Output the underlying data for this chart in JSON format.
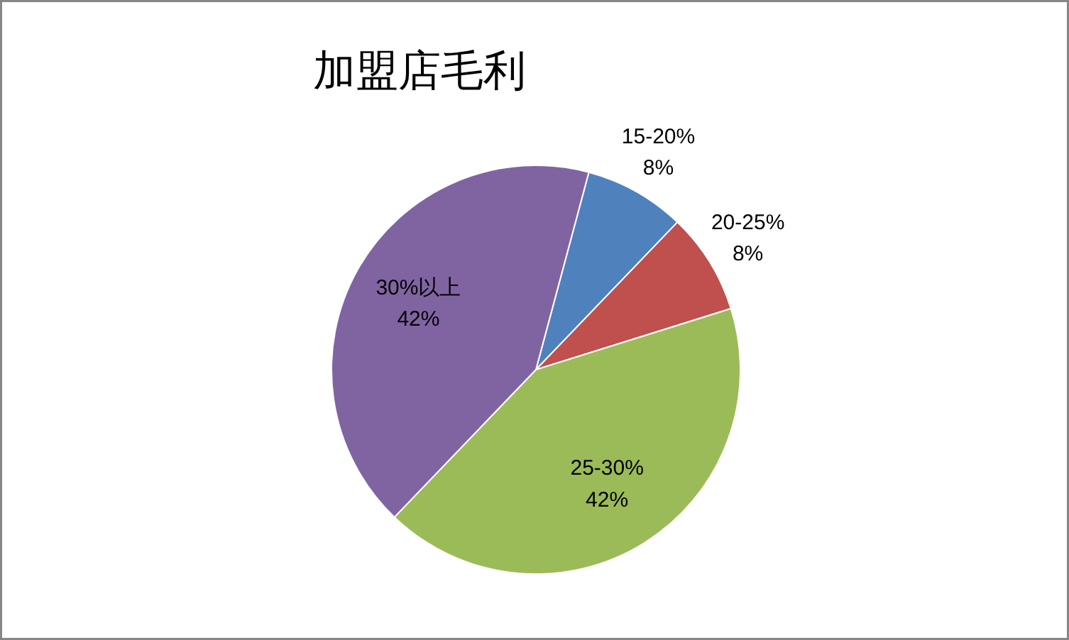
{
  "chart_data": {
    "type": "pie",
    "title": "加盟店毛利",
    "categories": [
      "15-20%",
      "20-25%",
      "25-30%",
      "30%以上"
    ],
    "values": [
      8,
      8,
      42,
      42
    ],
    "value_labels": [
      "8%",
      "8%",
      "42%",
      "42%"
    ],
    "colors": [
      "#4f81bd",
      "#c0504d",
      "#9bbb59",
      "#8064a2"
    ]
  }
}
